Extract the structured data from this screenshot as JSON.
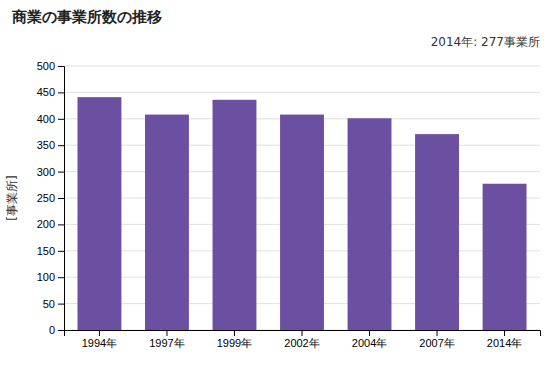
{
  "chart_data": {
    "type": "bar",
    "title": "商業の事業所数の推移",
    "ylabel": "[事業所]",
    "annotation": "2014年: 277事業所",
    "categories": [
      "1994年",
      "1997年",
      "1999年",
      "2002年",
      "2004年",
      "2007年",
      "2014年"
    ],
    "values": [
      441,
      408,
      436,
      408,
      401,
      371,
      277
    ],
    "color": "#6b4fa0",
    "ylim": [
      0,
      500
    ],
    "yticks": [
      0,
      50,
      100,
      150,
      200,
      250,
      300,
      350,
      400,
      450,
      500
    ],
    "grid": true
  }
}
